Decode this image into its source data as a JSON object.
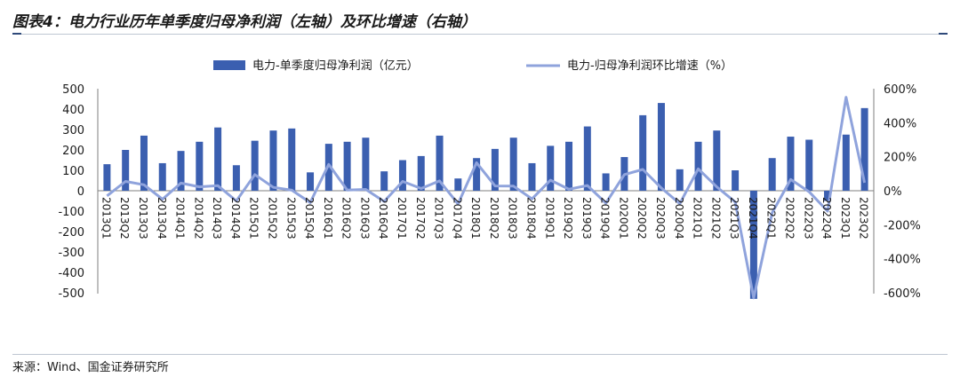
{
  "header": {
    "title": "图表4：电力行业历年单季度归母净利润（左轴）及环比增速（右轴）"
  },
  "footer": {
    "source": "来源：Wind、国金证券研究所"
  },
  "chart_data": {
    "type": "bar+line",
    "title": "图表4：电力行业历年单季度归母净利润（左轴）及环比增速（右轴）",
    "categories": [
      "2013Q1",
      "2013Q2",
      "2013Q3",
      "2013Q4",
      "2014Q1",
      "2014Q2",
      "2014Q3",
      "2014Q4",
      "2015Q1",
      "2015Q2",
      "2015Q3",
      "2015Q4",
      "2016Q1",
      "2016Q2",
      "2016Q3",
      "2016Q4",
      "2017Q1",
      "2017Q2",
      "2017Q3",
      "2017Q4",
      "2018Q1",
      "2018Q2",
      "2018Q3",
      "2018Q4",
      "2019Q1",
      "2019Q2",
      "2019Q3",
      "2019Q4",
      "2020Q1",
      "2020Q2",
      "2020Q3",
      "2020Q4",
      "2021Q1",
      "2021Q2",
      "2021Q3",
      "2021Q4",
      "2022Q1",
      "2022Q2",
      "2022Q3",
      "2022Q4",
      "2023Q1",
      "2023Q2"
    ],
    "series": [
      {
        "name": "电力-单季度归母净利润（亿元）",
        "type": "bar",
        "axis": "left",
        "color": "#3b5fb0",
        "values": [
          130,
          200,
          270,
          135,
          195,
          240,
          310,
          125,
          245,
          295,
          305,
          90,
          230,
          240,
          260,
          95,
          150,
          170,
          270,
          60,
          160,
          205,
          260,
          135,
          220,
          240,
          315,
          85,
          165,
          370,
          430,
          105,
          240,
          295,
          100,
          -530,
          160,
          265,
          250,
          -50,
          275,
          405
        ]
      },
      {
        "name": "电力-归母净利润环比增速（%）",
        "type": "line",
        "axis": "right",
        "color": "#8fa3dc",
        "values": [
          -30,
          55,
          35,
          -50,
          45,
          23,
          30,
          -60,
          95,
          20,
          3,
          -70,
          155,
          4,
          8,
          -63,
          55,
          13,
          58,
          -78,
          165,
          28,
          27,
          -48,
          62,
          9,
          31,
          -73,
          95,
          125,
          16,
          -76,
          129,
          23,
          -66,
          -630,
          -130,
          66,
          -6,
          -120,
          550,
          47
        ]
      }
    ],
    "left_axis": {
      "min": -500,
      "max": 500,
      "ticks": [
        500,
        400,
        300,
        200,
        100,
        0,
        -100,
        -200,
        -300,
        -400,
        -500
      ]
    },
    "right_axis": {
      "min": -600,
      "max": 600,
      "ticks": [
        "600%",
        "400%",
        "200%",
        "0%",
        "-200%",
        "-400%",
        "-600%"
      ]
    },
    "legend_position": "top-center",
    "grid": false
  }
}
